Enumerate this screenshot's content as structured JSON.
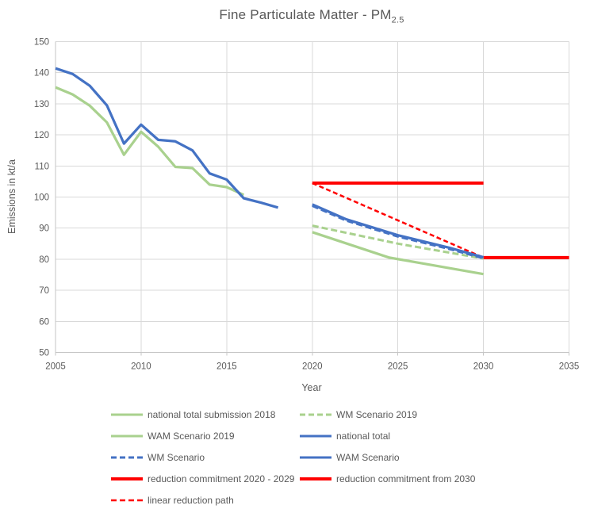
{
  "chart_data": {
    "type": "line",
    "title_main": "Fine Particulate Matter - PM",
    "title_sub": "2.5",
    "xlabel": "Year",
    "ylabel": "Emissions in kt/a",
    "xlim": [
      2005,
      2035
    ],
    "ylim": [
      50,
      150
    ],
    "x_ticks": [
      2005,
      2010,
      2015,
      2020,
      2025,
      2030,
      2035
    ],
    "y_ticks": [
      50,
      60,
      70,
      80,
      90,
      100,
      110,
      120,
      130,
      140,
      150
    ],
    "grid": true,
    "legend_position": "bottom",
    "colors": {
      "green": "#A9D18E",
      "blue": "#4472C4",
      "red": "#FF0000",
      "gridline": "#D9D9D9",
      "text": "#595959"
    },
    "series": [
      {
        "id": "national-total-submission-2018",
        "label": "national total submission 2018",
        "color": "#A9D18E",
        "style": "solid",
        "width": 3.25,
        "points": [
          [
            2005,
            135.3
          ],
          [
            2006,
            133.0
          ],
          [
            2007,
            129.4
          ],
          [
            2008,
            124.0
          ],
          [
            2009,
            113.6
          ],
          [
            2010,
            121.0
          ],
          [
            2011,
            116.2
          ],
          [
            2012,
            109.7
          ],
          [
            2013,
            109.3
          ],
          [
            2014,
            104.0
          ],
          [
            2015,
            103.2
          ],
          [
            2016,
            100.7
          ]
        ]
      },
      {
        "id": "national-total",
        "label": "national total",
        "color": "#4472C4",
        "style": "solid",
        "width": 3.25,
        "points": [
          [
            2005,
            141.4
          ],
          [
            2006,
            139.6
          ],
          [
            2007,
            135.8
          ],
          [
            2008,
            129.5
          ],
          [
            2009,
            117.2
          ],
          [
            2010,
            123.3
          ],
          [
            2011,
            118.4
          ],
          [
            2012,
            117.9
          ],
          [
            2013,
            115.0
          ],
          [
            2014,
            107.6
          ],
          [
            2015,
            105.6
          ],
          [
            2016,
            99.6
          ],
          [
            2017,
            98.2
          ],
          [
            2018,
            96.6
          ]
        ]
      },
      {
        "id": "reduction-commitment-2020-2029",
        "label": "reduction commitment 2020 - 2029",
        "color": "#FF0000",
        "style": "solid",
        "width": 4,
        "points": [
          [
            2020,
            104.5
          ],
          [
            2030,
            104.5
          ]
        ]
      },
      {
        "id": "reduction-commitment-from-2030",
        "label": "reduction commitment from 2030",
        "color": "#FF0000",
        "style": "solid",
        "width": 4,
        "points": [
          [
            2030,
            80.5
          ],
          [
            2035,
            80.5
          ]
        ]
      },
      {
        "id": "linear-reduction-path",
        "label": "linear reduction path",
        "color": "#FF0000",
        "style": "dashed",
        "width": 2.5,
        "points": [
          [
            2020,
            104.5
          ],
          [
            2030,
            80.5
          ]
        ]
      },
      {
        "id": "wm-scenario-2019",
        "label": "WM Scenario 2019",
        "color": "#A9D18E",
        "style": "dashed",
        "width": 3,
        "points": [
          [
            2020,
            90.8
          ],
          [
            2025,
            85.0
          ],
          [
            2030,
            80.2
          ]
        ]
      },
      {
        "id": "wam-scenario-2019",
        "label": "WAM Scenario 2019",
        "color": "#A9D18E",
        "style": "solid",
        "width": 3.25,
        "points": [
          [
            2020,
            88.7
          ],
          [
            2024.5,
            80.5
          ],
          [
            2030,
            75.2
          ]
        ]
      },
      {
        "id": "wm-scenario",
        "label": "WM Scenario",
        "color": "#4472C4",
        "style": "dashed",
        "width": 3,
        "points": [
          [
            2020,
            97.2
          ],
          [
            2022,
            92.4
          ],
          [
            2025,
            87.3
          ],
          [
            2028,
            83.3
          ],
          [
            2030,
            80.3
          ]
        ]
      },
      {
        "id": "wam-scenario",
        "label": "WAM Scenario",
        "color": "#4472C4",
        "style": "solid",
        "width": 3.25,
        "points": [
          [
            2020,
            97.6
          ],
          [
            2022,
            92.8
          ],
          [
            2025,
            87.7
          ],
          [
            2028,
            83.7
          ],
          [
            2030,
            80.6
          ]
        ]
      }
    ],
    "legend": {
      "columns": 2,
      "entries": [
        {
          "label": "national total submission 2018",
          "color": "#A9D18E",
          "style": "solid",
          "width": 3
        },
        {
          "label": "WM Scenario 2019",
          "color": "#A9D18E",
          "style": "dashed",
          "width": 3
        },
        {
          "label": "WAM Scenario 2019",
          "color": "#A9D18E",
          "style": "solid",
          "width": 3
        },
        {
          "label": "national total",
          "color": "#4472C4",
          "style": "solid",
          "width": 3
        },
        {
          "label": "WM Scenario",
          "color": "#4472C4",
          "style": "dashed",
          "width": 3
        },
        {
          "label": "WAM Scenario",
          "color": "#4472C4",
          "style": "solid",
          "width": 3
        },
        {
          "label": "reduction commitment 2020 - 2029",
          "color": "#FF0000",
          "style": "solid",
          "width": 4
        },
        {
          "label": "reduction commitment from 2030",
          "color": "#FF0000",
          "style": "solid",
          "width": 4
        },
        {
          "label": "linear reduction path",
          "color": "#FF0000",
          "style": "dashed",
          "width": 2.5
        }
      ]
    }
  }
}
